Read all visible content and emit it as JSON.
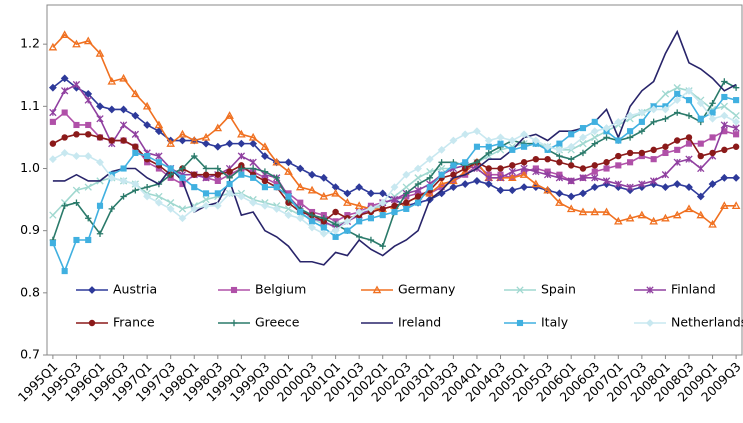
{
  "chart_data": {
    "type": "line",
    "categories": [
      "1995Q1",
      null,
      "1995Q3",
      null,
      "1996Q1",
      null,
      "1996Q3",
      null,
      "1997Q1",
      null,
      "1997Q3",
      null,
      "1998Q1",
      null,
      "1998Q3",
      null,
      "1999Q1",
      null,
      "1999Q3",
      null,
      "2000Q1",
      null,
      "2000Q3",
      null,
      "2001Q1",
      null,
      "2001Q3",
      null,
      "2002Q1",
      null,
      "2002Q3",
      null,
      "2003Q1",
      null,
      "2003Q3",
      null,
      "2004Q1",
      null,
      "2004Q3",
      null,
      "2005Q1",
      null,
      "2005Q3",
      null,
      "2006Q1",
      null,
      "2006Q3",
      null,
      "2007Q1",
      null,
      "2007Q3",
      null,
      "2008Q1",
      null,
      "2008Q3",
      null,
      "2009Q1",
      null,
      "2009Q3"
    ],
    "ylim": [
      0.7,
      1.263
    ],
    "yticks": [
      0.7,
      0.8,
      0.9,
      {
        "value": 1,
        "label": "1.0"
      },
      1.1,
      1.2
    ],
    "grid": false,
    "legend": "lower",
    "series": [
      {
        "name": "Austria",
        "color": "#2e3a9a",
        "marker": "diamond",
        "values": [
          1.13,
          1.145,
          1.13,
          1.12,
          1.1,
          1.095,
          1.095,
          1.085,
          1.07,
          1.06,
          1.045,
          1.045,
          1.045,
          1.04,
          1.035,
          1.04,
          1.04,
          1.04,
          1.02,
          1.01,
          1.01,
          1.0,
          0.99,
          0.985,
          0.97,
          0.96,
          0.97,
          0.96,
          0.96,
          0.95,
          0.94,
          0.945,
          0.95,
          0.96,
          0.97,
          0.975,
          0.98,
          0.975,
          0.965,
          0.965,
          0.97,
          0.97,
          0.965,
          0.96,
          0.955,
          0.96,
          0.97,
          0.975,
          0.97,
          0.965,
          0.97,
          0.975,
          0.97,
          0.975,
          0.97,
          0.955,
          0.975,
          0.985,
          0.985
        ]
      },
      {
        "name": "Belgium",
        "color": "#b050a8",
        "marker": "square",
        "values": [
          1.075,
          1.09,
          1.07,
          1.07,
          1.05,
          1.045,
          1.045,
          1.035,
          1.01,
          1.0,
          0.985,
          0.975,
          0.99,
          0.985,
          0.98,
          0.99,
          1.0,
          0.995,
          0.985,
          0.975,
          0.96,
          0.945,
          0.93,
          0.925,
          0.915,
          0.925,
          0.93,
          0.94,
          0.945,
          0.95,
          0.955,
          0.96,
          0.96,
          0.97,
          0.98,
          0.99,
          1.005,
          0.99,
          0.99,
          0.985,
          0.995,
          1.0,
          0.995,
          0.99,
          0.98,
          0.985,
          0.995,
          1.0,
          1.005,
          1.01,
          1.02,
          1.015,
          1.025,
          1.03,
          1.04,
          1.04,
          1.05,
          1.06,
          1.055
        ]
      },
      {
        "name": "Germany",
        "color": "#f07020",
        "marker": "triangle",
        "values": [
          1.195,
          1.215,
          1.2,
          1.205,
          1.185,
          1.14,
          1.145,
          1.12,
          1.1,
          1.07,
          1.04,
          1.055,
          1.045,
          1.05,
          1.065,
          1.085,
          1.055,
          1.05,
          1.035,
          1.01,
          0.995,
          0.97,
          0.965,
          0.955,
          0.96,
          0.945,
          0.94,
          0.935,
          0.935,
          0.94,
          0.945,
          0.955,
          0.96,
          0.975,
          0.98,
          0.995,
          1.01,
          0.985,
          0.985,
          0.985,
          0.99,
          0.975,
          0.965,
          0.945,
          0.935,
          0.93,
          0.93,
          0.93,
          0.915,
          0.92,
          0.925,
          0.915,
          0.92,
          0.925,
          0.935,
          0.925,
          0.91,
          0.94,
          0.94
        ]
      },
      {
        "name": "Spain",
        "color": "#a0d8d0",
        "marker": "x",
        "values": [
          0.925,
          0.945,
          0.965,
          0.97,
          0.98,
          0.985,
          0.98,
          0.975,
          0.96,
          0.955,
          0.945,
          0.935,
          0.94,
          0.95,
          0.955,
          0.96,
          0.96,
          0.95,
          0.945,
          0.94,
          0.935,
          0.925,
          0.92,
          0.91,
          0.91,
          0.915,
          0.925,
          0.935,
          0.94,
          0.955,
          0.97,
          0.985,
          0.995,
          1.0,
          1.0,
          1.005,
          1.01,
          1.02,
          1.03,
          1.035,
          1.04,
          1.04,
          1.035,
          1.03,
          1.03,
          1.04,
          1.05,
          1.06,
          1.07,
          1.08,
          1.09,
          1.1,
          1.12,
          1.13,
          1.125,
          1.11,
          1.095,
          1.1,
          1.085
        ]
      },
      {
        "name": "Finland",
        "color": "#9040a0",
        "marker": "star",
        "values": [
          1.09,
          1.125,
          1.135,
          1.11,
          1.08,
          1.04,
          1.07,
          1.055,
          1.025,
          1.02,
          1.0,
          0.99,
          0.99,
          0.985,
          0.99,
          1.0,
          1.02,
          1.01,
          0.99,
          0.985,
          0.955,
          0.935,
          0.92,
          0.915,
          0.905,
          0.915,
          0.925,
          0.935,
          0.945,
          0.95,
          0.96,
          0.965,
          0.975,
          0.99,
          1.0,
          1.005,
          1.0,
          0.985,
          0.985,
          0.995,
          1.0,
          0.995,
          0.99,
          0.985,
          0.98,
          0.985,
          0.985,
          0.98,
          0.975,
          0.97,
          0.975,
          0.98,
          0.99,
          1.01,
          1.015,
          1.0,
          1.02,
          1.07,
          1.065
        ]
      },
      {
        "name": "France",
        "color": "#8b1a1a",
        "marker": "circle",
        "values": [
          1.04,
          1.05,
          1.055,
          1.055,
          1.05,
          1.045,
          1.045,
          1.035,
          1.015,
          1.005,
          0.99,
          1.0,
          0.99,
          0.99,
          0.99,
          0.995,
          1.005,
          0.99,
          0.98,
          0.97,
          0.945,
          0.93,
          0.925,
          0.915,
          0.93,
          0.92,
          0.925,
          0.93,
          0.935,
          0.94,
          0.945,
          0.955,
          0.965,
          0.985,
          0.99,
          1.0,
          1.01,
          1.0,
          1.0,
          1.005,
          1.01,
          1.015,
          1.015,
          1.01,
          1.005,
          1.0,
          1.005,
          1.01,
          1.02,
          1.025,
          1.025,
          1.03,
          1.035,
          1.045,
          1.05,
          1.02,
          1.025,
          1.03,
          1.035
        ]
      },
      {
        "name": "Greece",
        "color": "#2a7a6a",
        "marker": "plus",
        "values": [
          0.885,
          0.94,
          0.945,
          0.92,
          0.895,
          0.935,
          0.955,
          0.965,
          0.97,
          0.975,
          0.99,
          1.0,
          1.02,
          1.0,
          1.0,
          0.985,
          1.0,
          1.0,
          0.995,
          0.985,
          0.95,
          0.935,
          0.925,
          0.92,
          0.91,
          0.9,
          0.89,
          0.885,
          0.875,
          0.93,
          0.96,
          0.975,
          0.985,
          1.01,
          1.01,
          1.005,
          1.01,
          1.025,
          1.035,
          1.045,
          1.04,
          1.04,
          1.03,
          1.02,
          1.015,
          1.025,
          1.04,
          1.05,
          1.045,
          1.05,
          1.06,
          1.075,
          1.08,
          1.09,
          1.085,
          1.075,
          1.105,
          1.14,
          1.13
        ]
      },
      {
        "name": "Ireland",
        "color": "#28246a",
        "marker": "none",
        "values": [
          0.98,
          0.98,
          0.99,
          0.98,
          0.98,
          0.995,
          1.0,
          1.0,
          0.985,
          0.975,
          1.0,
          0.98,
          0.93,
          0.94,
          0.945,
          0.98,
          0.925,
          0.93,
          0.9,
          0.89,
          0.875,
          0.85,
          0.85,
          0.845,
          0.865,
          0.86,
          0.885,
          0.87,
          0.86,
          0.875,
          0.885,
          0.9,
          0.95,
          0.965,
          0.985,
          0.99,
          1.0,
          1.015,
          1.015,
          1.03,
          1.05,
          1.055,
          1.045,
          1.06,
          1.06,
          1.065,
          1.075,
          1.095,
          1.05,
          1.1,
          1.125,
          1.14,
          1.185,
          1.22,
          1.17,
          1.16,
          1.145,
          1.125,
          1.135
        ]
      },
      {
        "name": "Italy",
        "color": "#40b0e0",
        "marker": "square",
        "values": [
          0.88,
          0.835,
          0.885,
          0.885,
          0.94,
          0.99,
          1.0,
          1.025,
          1.02,
          1.01,
          1.0,
          0.985,
          0.97,
          0.96,
          0.96,
          0.975,
          0.99,
          0.985,
          0.97,
          0.97,
          0.955,
          0.93,
          0.915,
          0.905,
          0.89,
          0.9,
          0.915,
          0.92,
          0.925,
          0.93,
          0.935,
          0.945,
          0.97,
          0.99,
          1.005,
          1.01,
          1.035,
          1.035,
          1.04,
          1.03,
          1.035,
          1.04,
          1.03,
          1.04,
          1.055,
          1.065,
          1.075,
          1.06,
          1.045,
          1.06,
          1.075,
          1.1,
          1.1,
          1.12,
          1.11,
          1.08,
          1.09,
          1.115,
          1.11
        ]
      },
      {
        "name": "Netherlands",
        "color": "#c8e8f0",
        "marker": "diamond",
        "values": [
          1.015,
          1.025,
          1.02,
          1.02,
          1.01,
          0.985,
          0.98,
          0.975,
          0.955,
          0.945,
          0.935,
          0.92,
          0.935,
          0.94,
          0.94,
          0.96,
          0.955,
          0.945,
          0.94,
          0.935,
          0.925,
          0.92,
          0.905,
          0.895,
          0.9,
          0.915,
          0.93,
          0.935,
          0.945,
          0.97,
          0.99,
          1.0,
          1.015,
          1.03,
          1.045,
          1.055,
          1.06,
          1.045,
          1.05,
          1.045,
          1.055,
          1.045,
          1.035,
          1.03,
          1.035,
          1.05,
          1.06,
          1.065,
          1.075,
          1.085,
          1.09,
          1.095,
          1.095,
          1.11,
          1.125,
          1.105,
          1.08,
          1.085,
          1.075
        ]
      }
    ]
  }
}
